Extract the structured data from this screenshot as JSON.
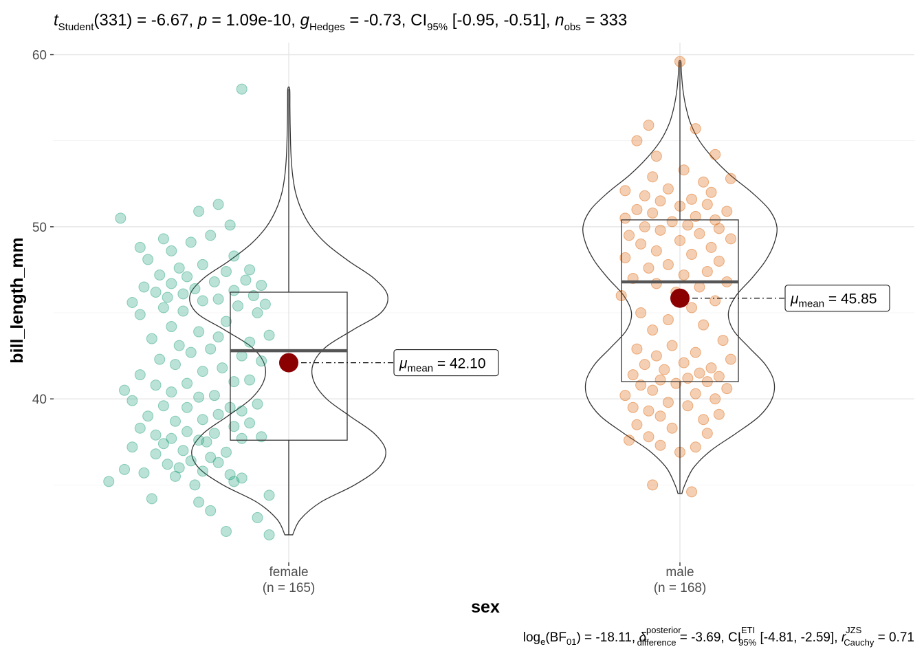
{
  "chart_data": {
    "type": "violin",
    "xlabel": "sex",
    "ylabel": "bill_length_mm",
    "ylim": [
      30.5,
      60.7
    ],
    "yticks": [
      40,
      50,
      60
    ],
    "grid": true,
    "subtitle": {
      "t_sym": "t",
      "t_sub": "Student",
      "df": "(331)",
      "eq": " = ",
      "t_val": "-6.67, ",
      "p_sym": "p",
      "p_val": "1.09e-10, ",
      "g_sym": "g",
      "g_sub": "Hedges",
      "g_val": "-0.73, ",
      "ci_sym": "CI",
      "ci_sub": "95%",
      "ci_val": " [-0.95, -0.51], ",
      "n_sym": "n",
      "n_sub": "obs",
      "n_val": "333"
    },
    "caption": {
      "log_sym": "log",
      "log_sub": "e",
      "bf_open": "(BF",
      "bf_sub": "01",
      "bf_close": ")",
      "bf_val": " = -18.11, ",
      "delta_sym": "δ",
      "delta_sup": "posterior",
      "delta_sub": "difference",
      "delta_val": " = -3.69, ",
      "ci_sym": "CI",
      "ci_sup": "ETI",
      "ci_sub": "95%",
      "ci_val": " [-4.81, -2.59], ",
      "r_sym": "r",
      "r_sup": "JZS",
      "r_sub": "Cauchy",
      "r_val": " = 0.71"
    },
    "groups": [
      {
        "category": "female",
        "n_label": "(n = 165)",
        "color": "#1B9E77",
        "min": 32.1,
        "q1": 37.6,
        "median": 42.8,
        "q3": 46.2,
        "max": 58.0,
        "mean": 42.1,
        "mean_label": {
          "sym": "μ",
          "sub": "mean",
          "value": " = 42.10"
        },
        "violin_density": [
          [
            32.1,
            0.04
          ],
          [
            33.0,
            0.12
          ],
          [
            34.0,
            0.33
          ],
          [
            35.0,
            0.68
          ],
          [
            36.0,
            0.93
          ],
          [
            37.0,
            1.0
          ],
          [
            38.0,
            0.88
          ],
          [
            39.0,
            0.63
          ],
          [
            40.0,
            0.39
          ],
          [
            41.0,
            0.26
          ],
          [
            42.0,
            0.25
          ],
          [
            43.0,
            0.38
          ],
          [
            44.0,
            0.66
          ],
          [
            45.0,
            0.95
          ],
          [
            46.0,
            1.02
          ],
          [
            47.0,
            0.88
          ],
          [
            48.0,
            0.62
          ],
          [
            49.0,
            0.39
          ],
          [
            50.0,
            0.23
          ],
          [
            51.0,
            0.13
          ],
          [
            52.0,
            0.07
          ],
          [
            53.0,
            0.04
          ],
          [
            54.0,
            0.025
          ],
          [
            55.0,
            0.018
          ],
          [
            56.0,
            0.014
          ],
          [
            57.0,
            0.012
          ],
          [
            58.0,
            0.01
          ]
        ],
        "points": [
          [
            0.95,
            32.1
          ],
          [
            0.84,
            32.3
          ],
          [
            0.92,
            33.1
          ],
          [
            0.8,
            33.5
          ],
          [
            0.77,
            34.0
          ],
          [
            0.95,
            34.4
          ],
          [
            0.76,
            35.0
          ],
          [
            0.65,
            34.2
          ],
          [
            0.86,
            35.2
          ],
          [
            0.54,
            35.2
          ],
          [
            0.71,
            35.5
          ],
          [
            0.85,
            35.6
          ],
          [
            0.88,
            35.4
          ],
          [
            0.63,
            35.7
          ],
          [
            0.78,
            35.8
          ],
          [
            0.72,
            36.0
          ],
          [
            0.58,
            35.9
          ],
          [
            0.69,
            36.2
          ],
          [
            0.75,
            36.4
          ],
          [
            0.8,
            36.6
          ],
          [
            0.66,
            36.8
          ],
          [
            0.82,
            36.3
          ],
          [
            0.73,
            37.0
          ],
          [
            0.6,
            37.2
          ],
          [
            0.84,
            36.9
          ],
          [
            0.68,
            37.4
          ],
          [
            0.77,
            37.6
          ],
          [
            0.79,
            37.5
          ],
          [
            0.7,
            37.7
          ],
          [
            0.93,
            37.8
          ],
          [
            0.66,
            37.9
          ],
          [
            0.81,
            38.0
          ],
          [
            0.88,
            37.7
          ],
          [
            0.74,
            38.1
          ],
          [
            0.62,
            38.3
          ],
          [
            0.86,
            38.4
          ],
          [
            0.9,
            38.6
          ],
          [
            0.71,
            38.7
          ],
          [
            0.78,
            38.8
          ],
          [
            0.64,
            39.0
          ],
          [
            0.82,
            39.1
          ],
          [
            0.88,
            39.3
          ],
          [
            0.74,
            39.5
          ],
          [
            0.68,
            39.6
          ],
          [
            0.85,
            39.5
          ],
          [
            0.92,
            39.7
          ],
          [
            0.6,
            39.9
          ],
          [
            0.77,
            40.1
          ],
          [
            0.81,
            40.2
          ],
          [
            0.7,
            40.4
          ],
          [
            0.58,
            40.5
          ],
          [
            0.66,
            40.8
          ],
          [
            0.74,
            40.9
          ],
          [
            0.86,
            41.0
          ],
          [
            0.9,
            41.1
          ],
          [
            0.62,
            41.4
          ],
          [
            0.78,
            41.6
          ],
          [
            0.83,
            41.8
          ],
          [
            0.71,
            42.0
          ],
          [
            0.93,
            42.2
          ],
          [
            0.67,
            42.3
          ],
          [
            0.88,
            42.5
          ],
          [
            0.75,
            42.7
          ],
          [
            0.8,
            42.9
          ],
          [
            0.72,
            43.1
          ],
          [
            0.9,
            43.3
          ],
          [
            0.65,
            43.5
          ],
          [
            0.82,
            43.6
          ],
          [
            0.95,
            43.7
          ],
          [
            0.77,
            43.9
          ],
          [
            0.7,
            44.2
          ],
          [
            0.84,
            44.5
          ],
          [
            0.62,
            44.9
          ],
          [
            0.92,
            45.0
          ],
          [
            0.73,
            45.1
          ],
          [
            0.68,
            45.3
          ],
          [
            0.87,
            45.4
          ],
          [
            0.94,
            45.5
          ],
          [
            0.6,
            45.6
          ],
          [
            0.78,
            45.7
          ],
          [
            0.82,
            45.8
          ],
          [
            0.69,
            45.9
          ],
          [
            0.91,
            46.0
          ],
          [
            0.73,
            46.1
          ],
          [
            0.66,
            46.2
          ],
          [
            0.86,
            46.3
          ],
          [
            0.76,
            46.4
          ],
          [
            0.63,
            46.5
          ],
          [
            0.93,
            46.6
          ],
          [
            0.7,
            46.7
          ],
          [
            0.81,
            46.8
          ],
          [
            0.89,
            46.9
          ],
          [
            0.74,
            47.1
          ],
          [
            0.67,
            47.2
          ],
          [
            0.84,
            47.4
          ],
          [
            0.9,
            47.5
          ],
          [
            0.72,
            47.6
          ],
          [
            0.78,
            47.8
          ],
          [
            0.64,
            48.1
          ],
          [
            0.86,
            48.3
          ],
          [
            0.7,
            48.6
          ],
          [
            0.62,
            48.8
          ],
          [
            0.75,
            49.1
          ],
          [
            0.68,
            49.3
          ],
          [
            0.8,
            49.5
          ],
          [
            0.85,
            50.1
          ],
          [
            0.57,
            50.5
          ],
          [
            0.77,
            50.9
          ],
          [
            0.82,
            51.3
          ],
          [
            0.88,
            58.0
          ]
        ]
      },
      {
        "category": "male",
        "n_label": "(n = 168)",
        "color": "#D95F02",
        "min": 34.5,
        "q1": 41.0,
        "median": 46.8,
        "q3": 50.4,
        "max": 59.6,
        "mean": 45.85,
        "mean_label": {
          "sym": "μ",
          "sub": "mean",
          "value": " = 45.85"
        },
        "violin_density": [
          [
            34.5,
            0.02
          ],
          [
            35.0,
            0.05
          ],
          [
            36.0,
            0.14
          ],
          [
            37.0,
            0.32
          ],
          [
            38.0,
            0.58
          ],
          [
            39.0,
            0.82
          ],
          [
            40.0,
            0.95
          ],
          [
            41.0,
            0.97
          ],
          [
            42.0,
            0.88
          ],
          [
            43.0,
            0.71
          ],
          [
            44.0,
            0.55
          ],
          [
            45.0,
            0.5
          ],
          [
            46.0,
            0.58
          ],
          [
            47.0,
            0.74
          ],
          [
            48.0,
            0.88
          ],
          [
            49.0,
            0.97
          ],
          [
            50.0,
            1.0
          ],
          [
            51.0,
            0.92
          ],
          [
            52.0,
            0.74
          ],
          [
            53.0,
            0.52
          ],
          [
            54.0,
            0.34
          ],
          [
            55.0,
            0.2
          ],
          [
            56.0,
            0.11
          ],
          [
            57.0,
            0.06
          ],
          [
            58.0,
            0.03
          ],
          [
            59.0,
            0.015
          ],
          [
            59.6,
            0.01
          ]
        ],
        "points": [
          [
            2.03,
            34.6
          ],
          [
            1.93,
            35.0
          ],
          [
            2.0,
            36.9
          ],
          [
            1.95,
            37.3
          ],
          [
            2.04,
            37.2
          ],
          [
            1.87,
            37.6
          ],
          [
            1.92,
            37.8
          ],
          [
            2.07,
            38.0
          ],
          [
            1.98,
            38.3
          ],
          [
            1.89,
            38.5
          ],
          [
            2.06,
            38.8
          ],
          [
            1.95,
            39.0
          ],
          [
            2.1,
            39.1
          ],
          [
            1.92,
            39.3
          ],
          [
            1.88,
            39.5
          ],
          [
            2.02,
            39.6
          ],
          [
            1.97,
            39.8
          ],
          [
            2.09,
            40.0
          ],
          [
            1.86,
            40.2
          ],
          [
            2.04,
            40.3
          ],
          [
            1.93,
            40.5
          ],
          [
            2.12,
            40.6
          ],
          [
            1.9,
            40.8
          ],
          [
            1.99,
            40.9
          ],
          [
            2.07,
            41.0
          ],
          [
            1.95,
            41.1
          ],
          [
            2.02,
            41.2
          ],
          [
            2.1,
            41.3
          ],
          [
            1.88,
            41.4
          ],
          [
            2.05,
            41.5
          ],
          [
            1.96,
            41.7
          ],
          [
            2.08,
            41.8
          ],
          [
            1.91,
            42.0
          ],
          [
            2.01,
            42.1
          ],
          [
            2.13,
            42.3
          ],
          [
            1.94,
            42.5
          ],
          [
            2.04,
            42.7
          ],
          [
            1.89,
            42.9
          ],
          [
            1.98,
            43.1
          ],
          [
            2.11,
            43.4
          ],
          [
            1.93,
            44.0
          ],
          [
            2.06,
            44.3
          ],
          [
            1.97,
            44.6
          ],
          [
            1.9,
            45.0
          ],
          [
            2.03,
            45.3
          ],
          [
            2.09,
            45.7
          ],
          [
            1.85,
            46.0
          ],
          [
            1.99,
            46.2
          ],
          [
            2.05,
            46.5
          ],
          [
            1.94,
            46.7
          ],
          [
            2.12,
            46.8
          ],
          [
            1.88,
            47.0
          ],
          [
            2.01,
            47.2
          ],
          [
            2.07,
            47.4
          ],
          [
            1.92,
            47.6
          ],
          [
            1.97,
            47.8
          ],
          [
            2.1,
            48.0
          ],
          [
            1.86,
            48.2
          ],
          [
            2.03,
            48.4
          ],
          [
            1.94,
            48.6
          ],
          [
            2.08,
            48.8
          ],
          [
            1.9,
            49.0
          ],
          [
            2.0,
            49.2
          ],
          [
            2.13,
            49.3
          ],
          [
            1.87,
            49.5
          ],
          [
            2.05,
            49.6
          ],
          [
            1.95,
            49.8
          ],
          [
            2.1,
            49.9
          ],
          [
            1.91,
            50.0
          ],
          [
            2.02,
            50.1
          ],
          [
            1.98,
            50.3
          ],
          [
            2.09,
            50.4
          ],
          [
            1.86,
            50.5
          ],
          [
            2.04,
            50.6
          ],
          [
            1.93,
            50.8
          ],
          [
            2.12,
            50.9
          ],
          [
            1.89,
            51.0
          ],
          [
            2.0,
            51.2
          ],
          [
            2.07,
            51.3
          ],
          [
            1.95,
            51.5
          ],
          [
            2.03,
            51.6
          ],
          [
            1.91,
            51.8
          ],
          [
            2.08,
            52.0
          ],
          [
            1.86,
            52.1
          ],
          [
            1.97,
            52.2
          ],
          [
            2.06,
            52.6
          ],
          [
            1.93,
            52.9
          ],
          [
            2.13,
            52.8
          ],
          [
            2.01,
            53.3
          ],
          [
            1.94,
            54.1
          ],
          [
            2.09,
            54.2
          ],
          [
            1.89,
            55.0
          ],
          [
            2.04,
            55.7
          ],
          [
            1.92,
            55.9
          ],
          [
            2.0,
            59.6
          ]
        ]
      }
    ]
  }
}
